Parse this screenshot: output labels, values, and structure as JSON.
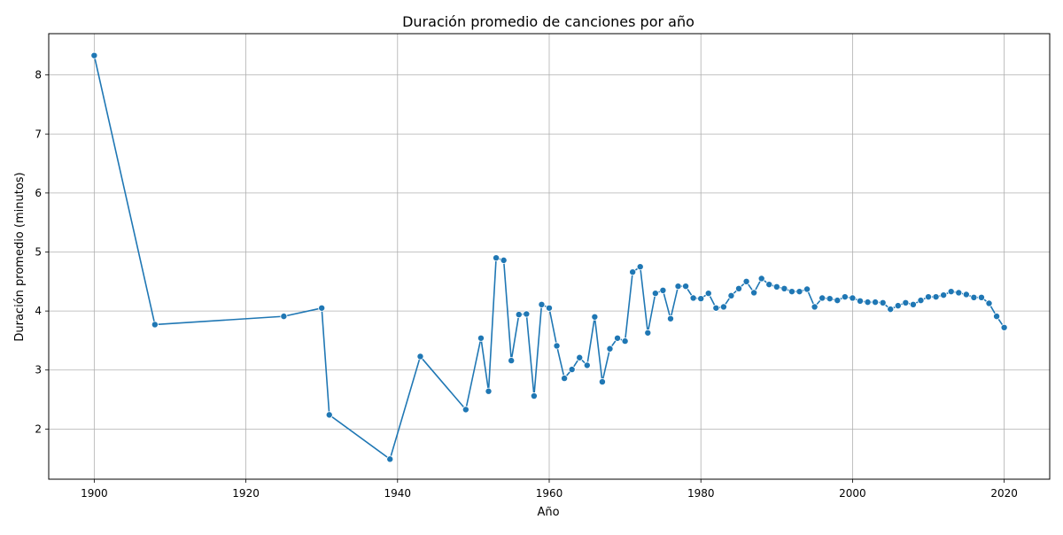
{
  "chart_data": {
    "type": "line",
    "title": "Duración promedio de canciones por año",
    "xlabel": "Año",
    "ylabel": "Duración promedio (minutos)",
    "xlim": [
      1894,
      2026
    ],
    "ylim": [
      1.15,
      8.7
    ],
    "xticks": [
      1900,
      1920,
      1940,
      1960,
      1980,
      2000,
      2020
    ],
    "yticks": [
      2,
      3,
      4,
      5,
      6,
      7,
      8
    ],
    "grid": true,
    "line_color": "#1f77b4",
    "series": [
      {
        "x": [
          1900,
          1908,
          1925,
          1930,
          1931,
          1939,
          1943,
          1949,
          1951,
          1952,
          1953,
          1954,
          1955,
          1956,
          1957,
          1958,
          1959,
          1960,
          1961,
          1962,
          1963,
          1964,
          1965,
          1966,
          1967,
          1968,
          1969,
          1970,
          1971,
          1972,
          1973,
          1974,
          1975,
          1976,
          1977,
          1978,
          1979,
          1980,
          1981,
          1982,
          1983,
          1984,
          1985,
          1986,
          1987,
          1988,
          1989,
          1990,
          1991,
          1992,
          1993,
          1994,
          1995,
          1996,
          1997,
          1998,
          1999,
          2000,
          2001,
          2002,
          2003,
          2004,
          2005,
          2006,
          2007,
          2008,
          2009,
          2010,
          2011,
          2012,
          2013,
          2014,
          2015,
          2016,
          2017,
          2018,
          2019,
          2020
        ],
        "y": [
          8.33,
          3.77,
          3.91,
          4.05,
          2.24,
          1.49,
          3.23,
          2.33,
          3.54,
          2.64,
          4.9,
          4.86,
          3.16,
          3.94,
          3.95,
          2.56,
          4.11,
          4.05,
          3.41,
          2.86,
          3.01,
          3.21,
          3.08,
          3.9,
          2.8,
          3.36,
          3.54,
          3.49,
          4.66,
          4.75,
          3.63,
          4.3,
          4.35,
          3.87,
          4.42,
          4.42,
          4.22,
          4.21,
          4.3,
          4.05,
          4.07,
          4.26,
          4.38,
          4.5,
          4.31,
          4.55,
          4.45,
          4.41,
          4.38,
          4.33,
          4.33,
          4.37,
          4.07,
          4.22,
          4.21,
          4.18,
          4.24,
          4.22,
          4.17,
          4.15,
          4.15,
          4.14,
          4.03,
          4.09,
          4.14,
          4.11,
          4.18,
          4.24,
          4.24,
          4.27,
          4.33,
          4.31,
          4.28,
          4.23,
          4.23,
          4.13,
          3.91,
          3.72
        ]
      }
    ]
  }
}
